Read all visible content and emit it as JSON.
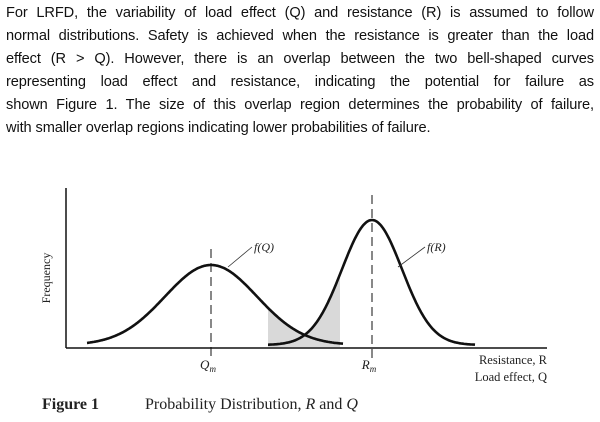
{
  "paragraph": [
    "For LRFD, the variability of load effect (Q) and resistance (R) is assumed to follow",
    "normal distributions. Safety is achieved when the resistance is greater than the load",
    "effect (R > Q). However, there is an overlap between the two bell-shaped curves",
    "representing load effect and resistance, indicating the potential for failure as",
    "shown Figure 1. The size of this overlap region determines the probability of failure,",
    "with smaller overlap regions indicating lower probabilities of failure."
  ],
  "figure": {
    "label": "Figure 1",
    "caption_prefix": "Probability Distribution, ",
    "caption_r": "R",
    "caption_and": " and ",
    "caption_q": "Q",
    "ylabel": "Frequency",
    "xlabel_line1": "Resistance, R",
    "xlabel_line2": "Load effect, Q",
    "curve_q_label": "f(Q)",
    "curve_r_label": "f(R)",
    "mean_q_label": "Q",
    "mean_q_sub": "m",
    "mean_r_label": "R",
    "mean_r_sub": "m",
    "overlap_fill": "#d9d9d9"
  }
}
